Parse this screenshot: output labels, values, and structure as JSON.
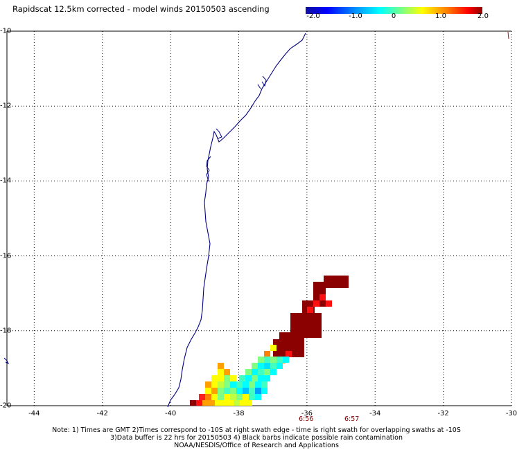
{
  "title": "Rapidscat 12.5km corrected - model winds 20150503 ascending",
  "colorbar": {
    "ticks": [
      "-2.0",
      "-1.0",
      "0",
      "1.0",
      "2.0"
    ],
    "min": -2.0,
    "max": 2.0
  },
  "map": {
    "lon_range": [
      -44.8,
      -30
    ],
    "lat_range": [
      -20,
      -10
    ],
    "lon_ticks": [
      "-44",
      "-42",
      "-40",
      "-38",
      "-36",
      "-34",
      "-32",
      "-30"
    ],
    "lat_ticks": [
      "-10",
      "-12",
      "-14",
      "-16",
      "-18",
      "-20"
    ],
    "grid": "dotted",
    "coast_color": "#000080"
  },
  "time_labels": [
    "6:56",
    "6:57"
  ],
  "notes": {
    "line1": "Note: 1) Times are GMT 2)Times correspond to -10S at right swath edge - time is right swath for overlapping swaths at -10S",
    "line2": "3)Data buffer is 22 hrs for 20150503 4) Black barbs indicate possible rain contamination",
    "line3": "NOAA/NESDIS/Office of Research and Applications"
  }
}
